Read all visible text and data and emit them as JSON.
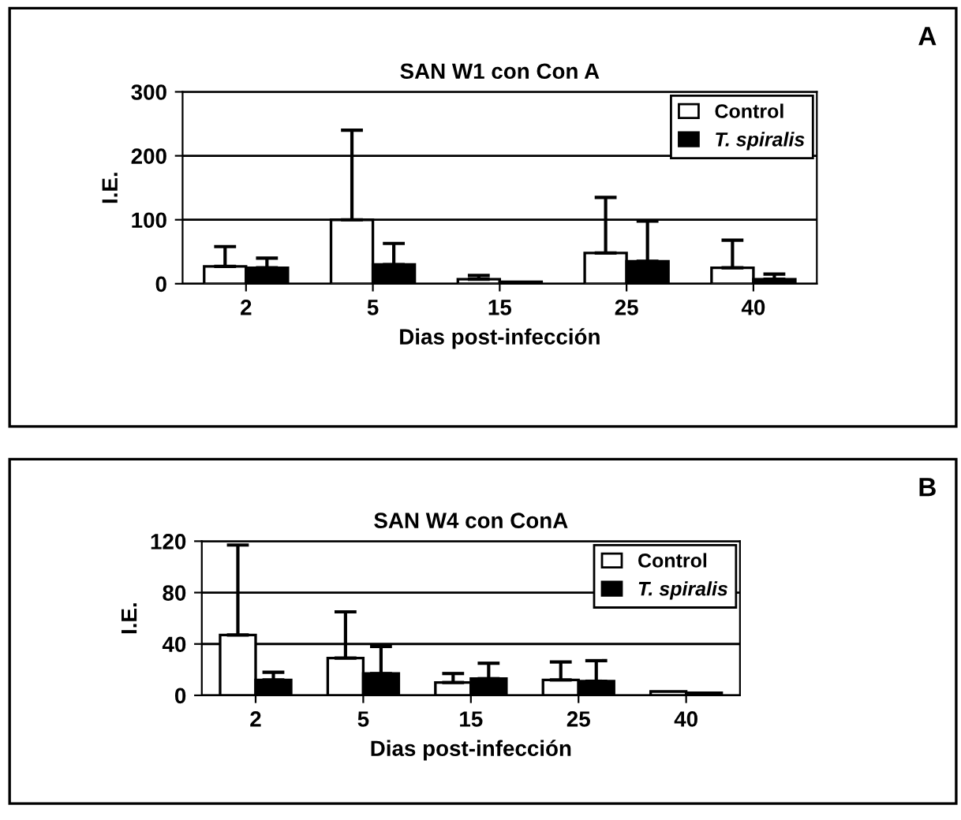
{
  "chart_data": [
    {
      "type": "bar",
      "title": "SAN W1 con Con A",
      "xlabel": "Dias post-infección",
      "ylabel": "I.E.",
      "categories": [
        "2",
        "5",
        "15",
        "25",
        "40"
      ],
      "ylim": [
        0,
        300
      ],
      "yticks": [
        0,
        100,
        200,
        300
      ],
      "grid": "y",
      "legend": "top right",
      "annotations": [
        "A"
      ],
      "series": [
        {
          "name": "Control",
          "color": "#ffffff",
          "values": [
            27,
            100,
            7,
            48,
            25
          ],
          "errors": [
            [
              27,
              58
            ],
            [
              100,
              240
            ],
            [
              7,
              13
            ],
            [
              48,
              135
            ],
            [
              25,
              68
            ]
          ]
        },
        {
          "name": "T. spiralis",
          "color": "#000000",
          "values": [
            25,
            30,
            3,
            35,
            7
          ],
          "errors": [
            [
              25,
              40
            ],
            [
              30,
              63
            ],
            null,
            [
              35,
              98
            ],
            [
              7,
              15
            ]
          ]
        }
      ]
    },
    {
      "type": "bar",
      "title": "SAN W4 con ConA",
      "xlabel": "Dias post-infección",
      "ylabel": "I.E.",
      "categories": [
        "2",
        "5",
        "15",
        "25",
        "40"
      ],
      "ylim": [
        0,
        120
      ],
      "yticks": [
        0,
        40,
        80,
        120
      ],
      "grid": "y",
      "legend": "top right",
      "annotations": [
        "B"
      ],
      "series": [
        {
          "name": "Control",
          "color": "#ffffff",
          "values": [
            47,
            29,
            10,
            12,
            3
          ],
          "errors": [
            [
              47,
              117
            ],
            [
              29,
              65
            ],
            [
              10,
              17
            ],
            [
              12,
              26
            ],
            null
          ]
        },
        {
          "name": "T. spiralis",
          "color": "#000000",
          "values": [
            12,
            17,
            13,
            11,
            2
          ],
          "errors": [
            [
              12,
              18
            ],
            [
              17,
              38
            ],
            [
              13,
              25
            ],
            [
              11,
              27
            ],
            null
          ]
        }
      ]
    }
  ]
}
